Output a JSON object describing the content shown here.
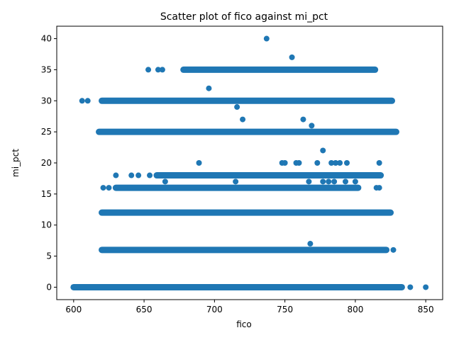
{
  "chart_data": {
    "type": "scatter",
    "title": "Scatter plot of fico against mi_pct",
    "xlabel": "fico",
    "ylabel": "mi_pct",
    "xlim": [
      588,
      862
    ],
    "ylim": [
      -2,
      42
    ],
    "xticks": [
      600,
      650,
      700,
      750,
      800,
      850
    ],
    "yticks": [
      0,
      5,
      10,
      15,
      20,
      25,
      30,
      35,
      40
    ],
    "grid": false,
    "legend": "none",
    "color": "#1f77b4",
    "bands": [
      {
        "y": 0,
        "x_from": 600,
        "x_to": 833
      },
      {
        "y": 6,
        "x_from": 620,
        "x_to": 822
      },
      {
        "y": 12,
        "x_from": 620,
        "x_to": 825
      },
      {
        "y": 25,
        "x_from": 618,
        "x_to": 829
      },
      {
        "y": 30,
        "x_from": 620,
        "x_to": 826
      },
      {
        "y": 35,
        "x_from": 678,
        "x_to": 814
      },
      {
        "y": 18,
        "x_from": 659,
        "x_to": 818
      },
      {
        "y": 16,
        "x_from": 630,
        "x_to": 802
      }
    ],
    "points": [
      {
        "x": 737,
        "y": 40
      },
      {
        "x": 755,
        "y": 37
      },
      {
        "x": 653,
        "y": 35
      },
      {
        "x": 660,
        "y": 35
      },
      {
        "x": 663,
        "y": 35
      },
      {
        "x": 606,
        "y": 30
      },
      {
        "x": 610,
        "y": 30
      },
      {
        "x": 696,
        "y": 32
      },
      {
        "x": 716,
        "y": 29
      },
      {
        "x": 720,
        "y": 27
      },
      {
        "x": 763,
        "y": 27
      },
      {
        "x": 769,
        "y": 26
      },
      {
        "x": 777,
        "y": 22
      },
      {
        "x": 689,
        "y": 20
      },
      {
        "x": 748,
        "y": 20
      },
      {
        "x": 750,
        "y": 20
      },
      {
        "x": 758,
        "y": 20
      },
      {
        "x": 760,
        "y": 20
      },
      {
        "x": 773,
        "y": 20
      },
      {
        "x": 783,
        "y": 20
      },
      {
        "x": 786,
        "y": 20
      },
      {
        "x": 789,
        "y": 20
      },
      {
        "x": 794,
        "y": 20
      },
      {
        "x": 817,
        "y": 20
      },
      {
        "x": 630,
        "y": 18
      },
      {
        "x": 641,
        "y": 18
      },
      {
        "x": 646,
        "y": 18
      },
      {
        "x": 654,
        "y": 18
      },
      {
        "x": 621,
        "y": 16
      },
      {
        "x": 625,
        "y": 16
      },
      {
        "x": 640,
        "y": 16
      },
      {
        "x": 815,
        "y": 16
      },
      {
        "x": 817,
        "y": 16
      },
      {
        "x": 665,
        "y": 17
      },
      {
        "x": 715,
        "y": 17
      },
      {
        "x": 767,
        "y": 17
      },
      {
        "x": 777,
        "y": 17
      },
      {
        "x": 781,
        "y": 17
      },
      {
        "x": 785,
        "y": 17
      },
      {
        "x": 793,
        "y": 17
      },
      {
        "x": 800,
        "y": 17
      },
      {
        "x": 768,
        "y": 7
      },
      {
        "x": 827,
        "y": 6
      },
      {
        "x": 839,
        "y": 0
      },
      {
        "x": 850,
        "y": 0
      }
    ]
  }
}
